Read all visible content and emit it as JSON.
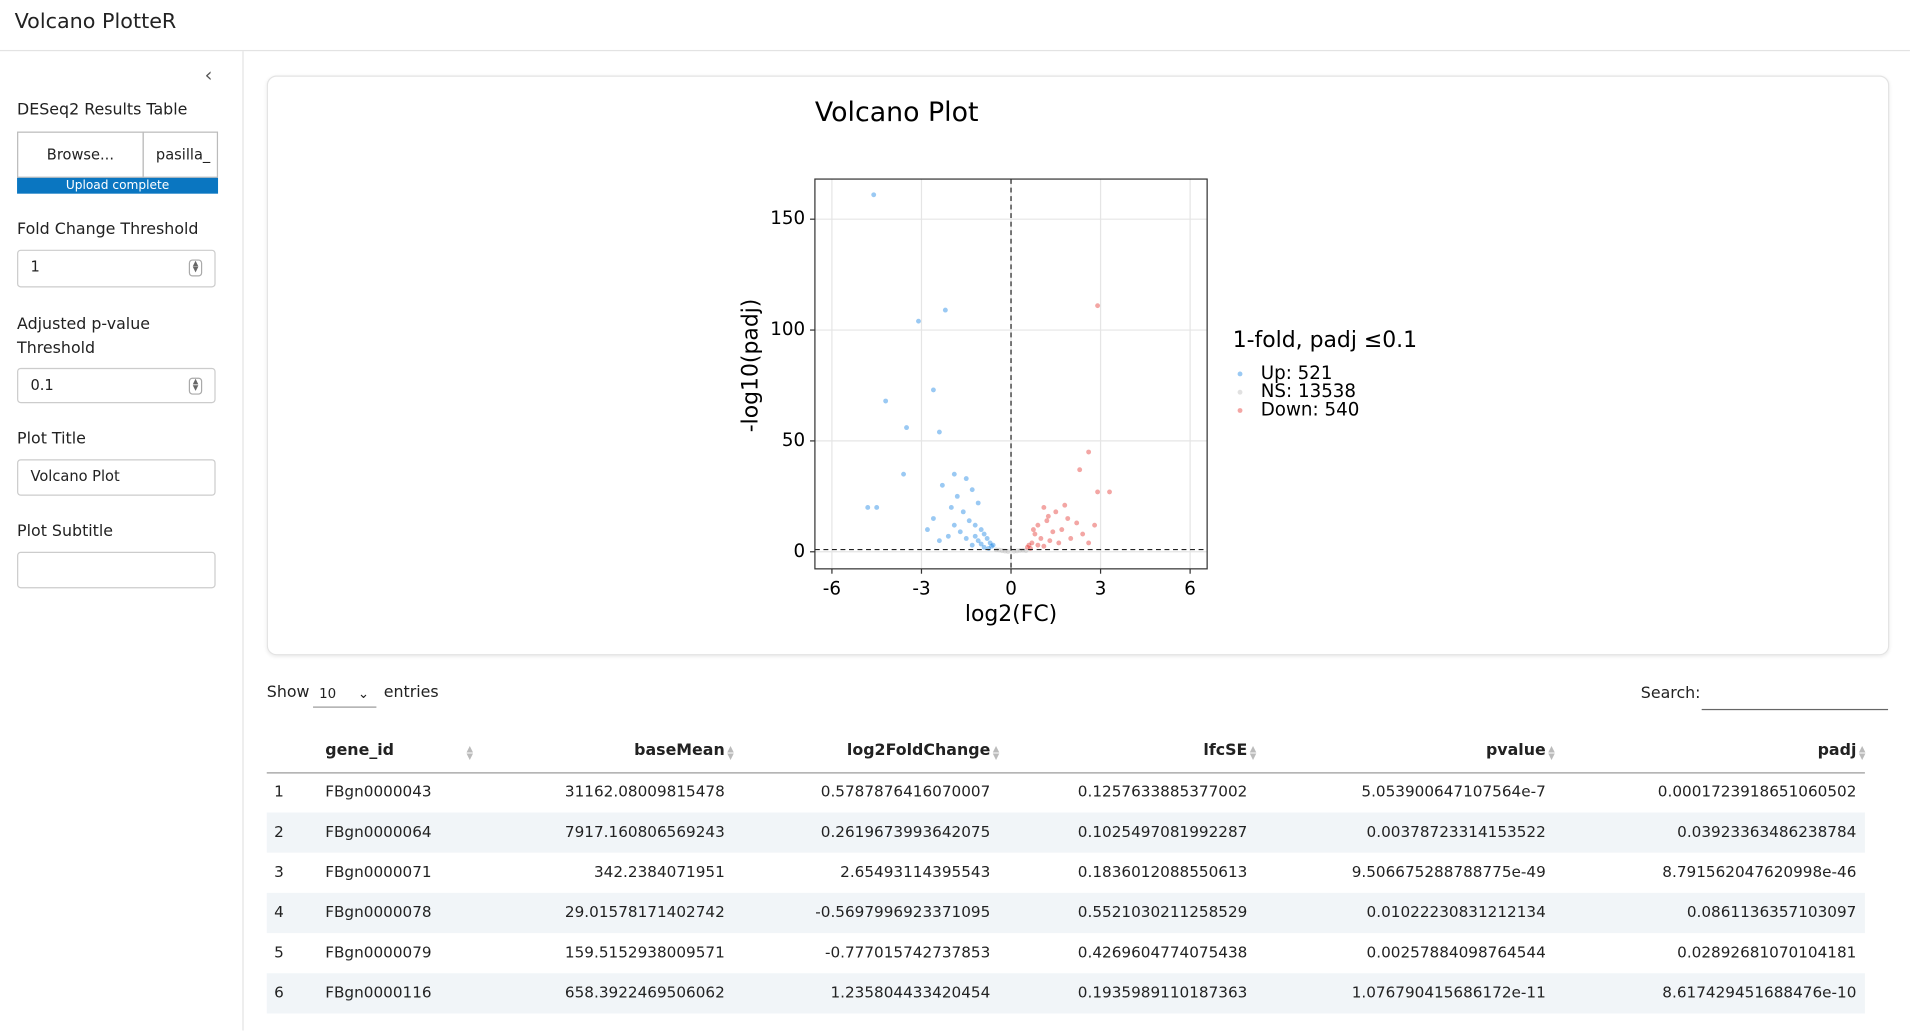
{
  "header": {
    "title": "Volcano PlotteR"
  },
  "sidebar": {
    "file_label": "DESeq2 Results Table",
    "browse_button": "Browse...",
    "file_name": "pasilla_",
    "upload_status": "Upload complete",
    "fc_label": "Fold Change Threshold",
    "fc_value": "1",
    "padj_label": "Adjusted p-value Threshold",
    "padj_value": "0.1",
    "title_label": "Plot Title",
    "title_value": "Volcano Plot",
    "subtitle_label": "Plot Subtitle"
  },
  "chart_data": {
    "type": "scatter",
    "title": "Volcano Plot",
    "x_label": "log2(FC)",
    "y_label": "-log10(padj)",
    "legend_title": "1-fold, padj ≤0.1",
    "xlim": [
      -6.57,
      6.57
    ],
    "ylim": [
      -7.7,
      168.1
    ],
    "xticks": [
      -6,
      -3,
      0,
      3,
      6
    ],
    "yticks": [
      0,
      50,
      100,
      150
    ],
    "grid": true,
    "vline": 0,
    "hline": 1,
    "series": [
      {
        "name": "Up: 521",
        "color": "#1e88e5",
        "x": [
          -4.6,
          -2.2,
          -3.1,
          -4.2,
          -2.6,
          -3.5,
          -2.4,
          -3.6,
          -4.8,
          -4.5,
          -2.3,
          -1.9,
          -1.5,
          -1.3,
          -1.8,
          -2.0,
          -1.1,
          -1.6,
          -2.6,
          -2.8,
          -1.4,
          -1.2,
          -1.0,
          -0.9,
          -0.8,
          -0.7,
          -0.6,
          -1.7,
          -2.1,
          -1.5,
          -1.1,
          -1.3,
          -0.9,
          -0.75,
          -2.4,
          -1.9,
          -0.65,
          -1.0,
          -1.2
        ],
        "y": [
          161,
          109,
          104,
          68,
          73,
          56,
          54,
          35,
          20,
          20,
          30,
          35,
          33,
          28,
          25,
          20,
          22,
          18,
          15,
          10,
          14,
          12,
          10,
          8,
          6,
          4,
          3,
          9,
          7,
          6,
          5,
          3,
          2,
          1.5,
          5,
          12,
          2.5,
          3.5,
          7
        ]
      },
      {
        "name": "NS: 13538",
        "color": "#bdbdbd",
        "x": [
          -0.3,
          -0.2,
          0.1,
          0.3,
          -0.4,
          0.2,
          -0.1,
          0.4,
          -0.5,
          0.5
        ],
        "y": [
          0.5,
          0.3,
          0.2,
          0.6,
          0.8,
          0.4,
          0.1,
          0.7,
          0.9,
          0.5
        ]
      },
      {
        "name": "Down: 540",
        "color": "#e53935",
        "x": [
          2.9,
          2.6,
          2.3,
          2.9,
          3.3,
          1.1,
          1.5,
          1.9,
          2.2,
          2.8,
          1.2,
          0.9,
          1.7,
          2.4,
          0.8,
          1.0,
          1.3,
          0.7,
          0.6,
          0.55,
          1.6,
          2.0,
          1.4,
          0.9,
          1.1,
          0.65,
          2.6,
          1.8,
          0.75,
          1.25
        ],
        "y": [
          111,
          45,
          37,
          27,
          27,
          20,
          18,
          15,
          13,
          12,
          14,
          12,
          10,
          8,
          8,
          6,
          5,
          4,
          3,
          2,
          4,
          6,
          9,
          3,
          2.5,
          1.5,
          4,
          21,
          10,
          16
        ]
      }
    ]
  },
  "table": {
    "show_label": "Show",
    "length_value": "10",
    "entries_label": "entries",
    "search_label": "Search:",
    "columns": [
      "gene_id",
      "baseMean",
      "log2FoldChange",
      "lfcSE",
      "pvalue",
      "padj"
    ],
    "rows": [
      [
        "1",
        "FBgn0000043",
        "31162.08009815478",
        "0.5787876416070007",
        "0.1257633885377002",
        "5.053900647107564e-7",
        "0.0001723918651060502"
      ],
      [
        "2",
        "FBgn0000064",
        "7917.160806569243",
        "0.2619673993642075",
        "0.1025497081992287",
        "0.00378723314153522",
        "0.03923363486238784"
      ],
      [
        "3",
        "FBgn0000071",
        "342.2384071951",
        "2.65493114395543",
        "0.1836012088550613",
        "9.506675288788775e-49",
        "8.791562047620998e-46"
      ],
      [
        "4",
        "FBgn0000078",
        "29.01578171402742",
        "-0.5697996923371095",
        "0.5521030211258529",
        "0.01022230831212134",
        "0.0861136357103097"
      ],
      [
        "5",
        "FBgn0000079",
        "159.5152938009571",
        "-0.777015742737853",
        "0.4269604774075438",
        "0.00257884098764544",
        "0.02892681070104181"
      ],
      [
        "6",
        "FBgn0000116",
        "658.3922469506062",
        "1.235804433420454",
        "0.1935989110187363",
        "1.076790415686172e-11",
        "8.617429451688476e-10"
      ]
    ]
  }
}
